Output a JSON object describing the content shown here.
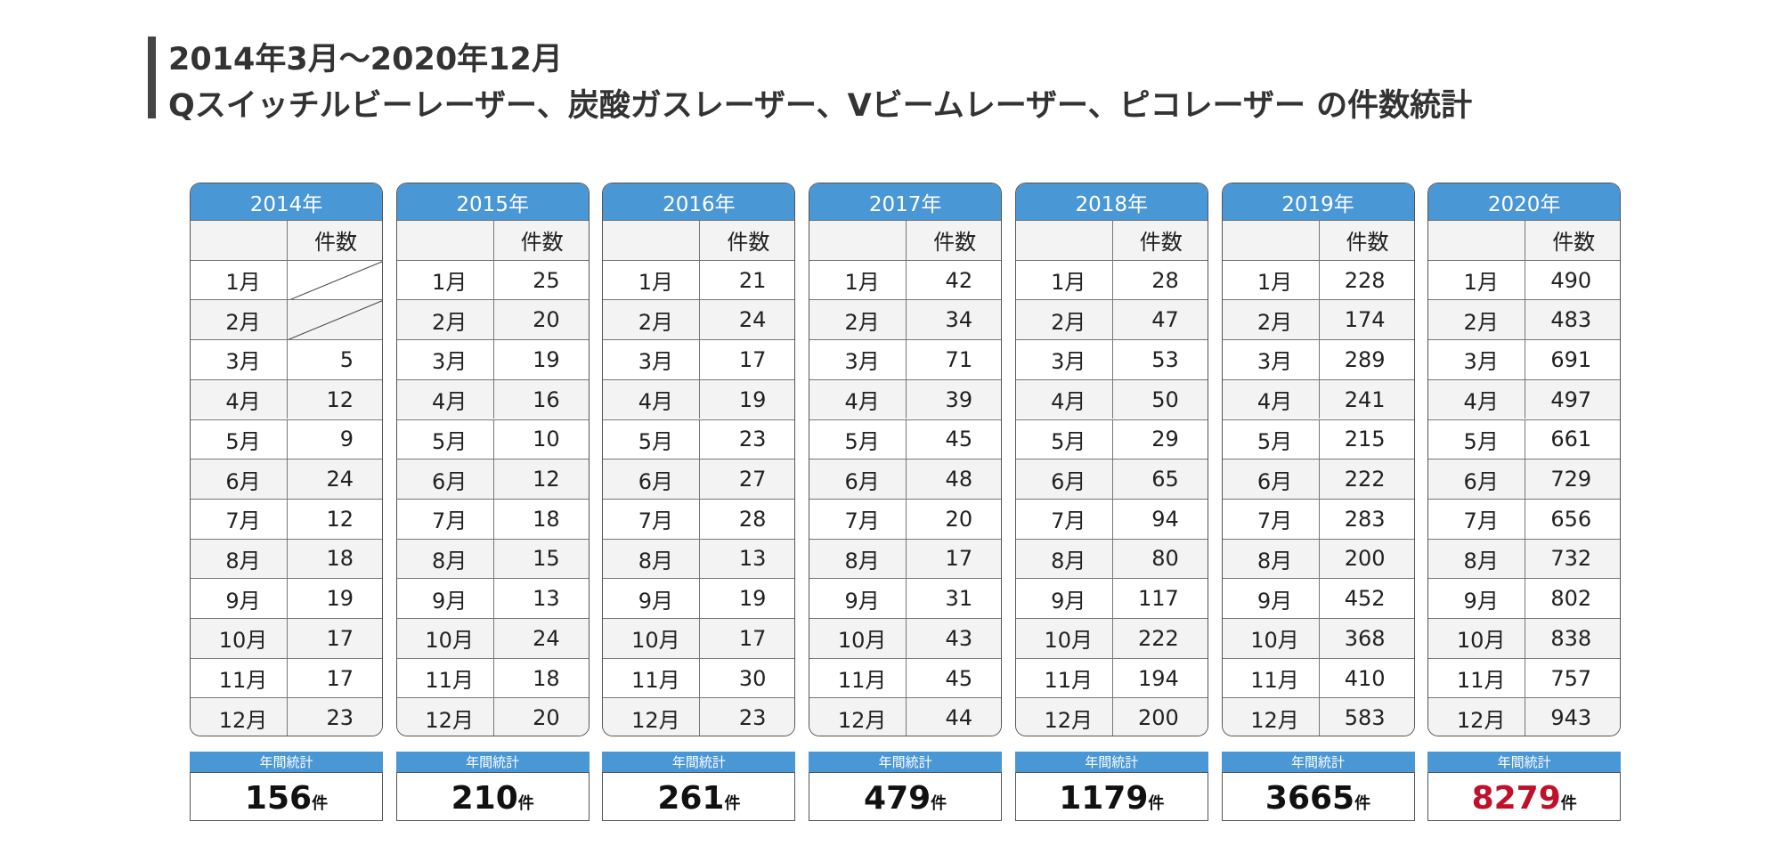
{
  "header": {
    "title_line1": "2014年3月～2020年12月",
    "title_line2": "Qスイッチルビーレーザー、炭酸ガスレーザー、Vビームレーザー、ピコレーザー の件数統計"
  },
  "months": [
    "1月",
    "2月",
    "3月",
    "4月",
    "5月",
    "6月",
    "7月",
    "8月",
    "9月",
    "10月",
    "11月",
    "12月"
  ],
  "count_header": "件数",
  "annual_label": "年間統計",
  "unit": "件",
  "tables": [
    {
      "year": "2014年",
      "counts": [
        null,
        null,
        5,
        12,
        9,
        24,
        12,
        18,
        19,
        17,
        17,
        23
      ],
      "total": 156
    },
    {
      "year": "2015年",
      "counts": [
        25,
        20,
        19,
        16,
        10,
        12,
        18,
        15,
        13,
        24,
        18,
        20
      ],
      "total": 210
    },
    {
      "year": "2016年",
      "counts": [
        21,
        24,
        17,
        19,
        23,
        27,
        28,
        13,
        19,
        17,
        30,
        23
      ],
      "total": 261
    },
    {
      "year": "2017年",
      "counts": [
        42,
        34,
        71,
        39,
        45,
        48,
        20,
        17,
        31,
        43,
        45,
        44
      ],
      "total": 479
    },
    {
      "year": "2018年",
      "counts": [
        28,
        47,
        53,
        50,
        29,
        65,
        94,
        80,
        117,
        222,
        194,
        200
      ],
      "total": 1179
    },
    {
      "year": "2019年",
      "counts": [
        228,
        174,
        289,
        241,
        215,
        222,
        283,
        200,
        452,
        368,
        410,
        583
      ],
      "total": 3665
    },
    {
      "year": "2020年",
      "counts": [
        490,
        483,
        691,
        497,
        661,
        729,
        656,
        732,
        802,
        838,
        757,
        943
      ],
      "total": 8279,
      "total_color": "#c0102a"
    }
  ]
}
